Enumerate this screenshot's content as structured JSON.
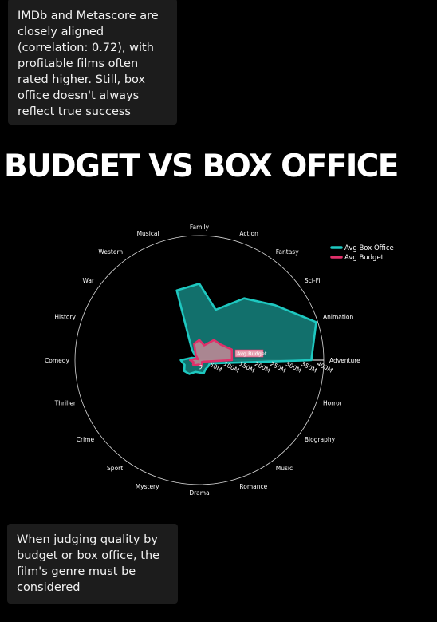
{
  "notes": {
    "top": "IMDb and Metascore are closely aligned (correlation: 0.72), with profitable films often rated higher. Still, box office doesn't always reflect true success",
    "bottom": "When judging quality by budget or box office, the film's genre must be considered"
  },
  "section_title": "BUDGET VS BOX OFFICE",
  "colors": {
    "box_office": "#1ec8c0",
    "box_office_fill": "#137a75",
    "budget": "#e0306a",
    "budget_fill": "#c58a98",
    "hover_label_bg": "#e8a3b3"
  },
  "chart_data": {
    "type": "radar",
    "title": "",
    "categories": [
      "Adventure",
      "Animation",
      "Sci-Fi",
      "Fantasy",
      "Action",
      "Family",
      "Musical",
      "Western",
      "War",
      "History",
      "Comedy",
      "Thriller",
      "Crime",
      "Sport",
      "Mystery",
      "Drama",
      "Romance",
      "Music",
      "Biography",
      "Horror"
    ],
    "radial_ticks": [
      "0",
      "50M",
      "100M",
      "150M",
      "200M",
      "250M",
      "300M",
      "350M",
      "400M"
    ],
    "radial_range": [
      0,
      400
    ],
    "units": "M",
    "series": [
      {
        "name": "Avg Box Office",
        "values": [
          360,
          395,
          300,
          245,
          170,
          245,
          235,
          40,
          10,
          25,
          60,
          50,
          60,
          55,
          40,
          40,
          45,
          35,
          35,
          35
        ]
      },
      {
        "name": "Avg Budget",
        "values": [
          105,
          110,
          85,
          80,
          50,
          65,
          55,
          20,
          5,
          15,
          30,
          20,
          25,
          20,
          15,
          15,
          20,
          15,
          10,
          15
        ]
      }
    ],
    "hover_label": "Avg Budget",
    "legend_position": "top-right",
    "grid": false
  }
}
